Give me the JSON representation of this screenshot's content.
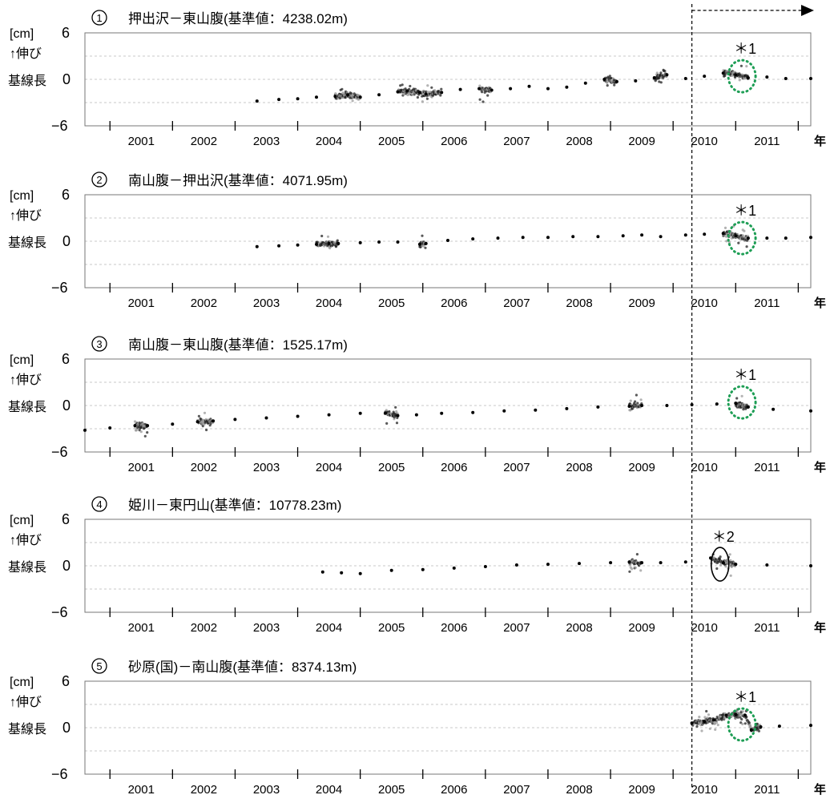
{
  "common": {
    "unit_label": "[cm]",
    "ylabel_line1": "↑伸び",
    "ylabel_line2": "基線長",
    "x_unit": "年",
    "y_ticks": [
      "6",
      "0",
      "−6"
    ],
    "x_tick_labels": [
      "2001",
      "2002",
      "2003",
      "2004",
      "2005",
      "2006",
      "2007",
      "2008",
      "2009",
      "2010",
      "2011"
    ],
    "marker_2010_year": 2010.3,
    "arrow": "dashed-right"
  },
  "chart_data": [
    {
      "type": "scatter",
      "index_label": "①",
      "title": "押出沢－東山腹(基準値：4238.02m)",
      "xlim": [
        2000.6,
        2012.2
      ],
      "ylim": [
        -6,
        6
      ],
      "grid": "dashed-horizontal",
      "series": [
        {
          "values": [
            [
              2003.35,
              -2.8
            ],
            [
              2003.7,
              -2.6
            ],
            [
              2004.0,
              -2.5
            ],
            [
              2004.3,
              -2.3
            ],
            [
              2004.6,
              -2.2
            ],
            [
              2004.8,
              -2.0
            ],
            [
              2005.0,
              -2.3
            ],
            [
              2005.3,
              -2.0
            ],
            [
              2005.6,
              -1.6
            ],
            [
              2005.75,
              -1.5
            ],
            [
              2005.95,
              -1.7
            ],
            [
              2006.05,
              -1.9
            ],
            [
              2006.3,
              -1.7
            ],
            [
              2006.6,
              -1.3
            ],
            [
              2006.9,
              -1.2
            ],
            [
              2007.1,
              -1.4
            ],
            [
              2007.4,
              -1.2
            ],
            [
              2007.7,
              -0.9
            ],
            [
              2008.0,
              -1.2
            ],
            [
              2008.3,
              -1.0
            ],
            [
              2008.6,
              -0.5
            ],
            [
              2008.9,
              0.0
            ],
            [
              2009.1,
              -0.3
            ],
            [
              2009.4,
              -0.2
            ],
            [
              2009.7,
              0.2
            ],
            [
              2009.9,
              0.6
            ],
            [
              2010.2,
              0.1
            ],
            [
              2010.5,
              0.4
            ],
            [
              2010.8,
              0.8
            ],
            [
              2011.0,
              0.6
            ],
            [
              2011.2,
              0.2
            ],
            [
              2011.5,
              0.3
            ],
            [
              2011.8,
              0.1
            ],
            [
              2012.2,
              0.1
            ]
          ]
        }
      ],
      "annotations": [
        {
          "text": "＊1",
          "x": 2011.1,
          "y": 0.4,
          "style": "green-dotted-ellipse"
        }
      ]
    },
    {
      "type": "scatter",
      "index_label": "②",
      "title": "南山腹－押出沢(基準値：4071.95m)",
      "xlim": [
        2000.6,
        2012.2
      ],
      "ylim": [
        -6,
        6
      ],
      "grid": "dashed-horizontal",
      "series": [
        {
          "values": [
            [
              2003.35,
              -0.7
            ],
            [
              2003.7,
              -0.6
            ],
            [
              2004.0,
              -0.5
            ],
            [
              2004.3,
              -0.4
            ],
            [
              2004.5,
              -0.3
            ],
            [
              2004.65,
              -0.3
            ],
            [
              2005.0,
              -0.2
            ],
            [
              2005.3,
              -0.1
            ],
            [
              2005.6,
              -0.1
            ],
            [
              2005.95,
              -0.4
            ],
            [
              2006.05,
              -0.3
            ],
            [
              2006.4,
              0.1
            ],
            [
              2006.8,
              0.3
            ],
            [
              2007.2,
              0.4
            ],
            [
              2007.6,
              0.5
            ],
            [
              2008.0,
              0.5
            ],
            [
              2008.4,
              0.6
            ],
            [
              2008.8,
              0.6
            ],
            [
              2009.2,
              0.7
            ],
            [
              2009.5,
              0.8
            ],
            [
              2009.8,
              0.6
            ],
            [
              2010.2,
              0.8
            ],
            [
              2010.5,
              0.9
            ],
            [
              2010.8,
              1.0
            ],
            [
              2011.0,
              0.7
            ],
            [
              2011.2,
              0.4
            ],
            [
              2011.5,
              0.4
            ],
            [
              2011.8,
              0.4
            ],
            [
              2012.2,
              0.5
            ]
          ]
        }
      ],
      "annotations": [
        {
          "text": "＊1",
          "x": 2011.1,
          "y": 0.4,
          "style": "green-dotted-ellipse"
        }
      ]
    },
    {
      "type": "scatter",
      "index_label": "③",
      "title": "南山腹－東山腹(基準値：1525.17m)",
      "xlim": [
        2000.6,
        2012.2
      ],
      "ylim": [
        -6,
        6
      ],
      "grid": "dashed-horizontal",
      "series": [
        {
          "values": [
            [
              2000.6,
              -3.2
            ],
            [
              2001.0,
              -2.9
            ],
            [
              2001.4,
              -2.6
            ],
            [
              2001.6,
              -2.6
            ],
            [
              2002.0,
              -2.4
            ],
            [
              2002.4,
              -2.1
            ],
            [
              2002.65,
              -2.0
            ],
            [
              2003.0,
              -1.8
            ],
            [
              2003.5,
              -1.6
            ],
            [
              2004.0,
              -1.4
            ],
            [
              2004.5,
              -1.2
            ],
            [
              2005.0,
              -1.0
            ],
            [
              2005.4,
              -1.0
            ],
            [
              2005.6,
              -1.3
            ],
            [
              2005.9,
              -1.2
            ],
            [
              2006.3,
              -1.0
            ],
            [
              2006.8,
              -0.9
            ],
            [
              2007.3,
              -0.7
            ],
            [
              2007.8,
              -0.6
            ],
            [
              2008.3,
              -0.4
            ],
            [
              2008.8,
              -0.2
            ],
            [
              2009.3,
              -0.1
            ],
            [
              2009.5,
              0.0
            ],
            [
              2009.9,
              0.0
            ],
            [
              2010.3,
              0.1
            ],
            [
              2010.7,
              0.2
            ],
            [
              2011.0,
              0.3
            ],
            [
              2011.2,
              -0.2
            ],
            [
              2011.6,
              -0.5
            ],
            [
              2012.2,
              -0.7
            ]
          ]
        }
      ],
      "annotations": [
        {
          "text": "＊1",
          "x": 2011.1,
          "y": 0.4,
          "style": "green-dotted-ellipse"
        }
      ]
    },
    {
      "type": "scatter",
      "index_label": "④",
      "title": "姫川－東円山(基準値：10778.23m)",
      "xlim": [
        2000.6,
        2012.2
      ],
      "ylim": [
        -6,
        6
      ],
      "grid": "dashed-horizontal",
      "series": [
        {
          "values": [
            [
              2004.4,
              -0.8
            ],
            [
              2004.7,
              -0.9
            ],
            [
              2005.0,
              -1.0
            ],
            [
              2005.5,
              -0.6
            ],
            [
              2006.0,
              -0.5
            ],
            [
              2006.5,
              -0.3
            ],
            [
              2007.0,
              -0.1
            ],
            [
              2007.5,
              0.1
            ],
            [
              2008.0,
              0.2
            ],
            [
              2008.5,
              0.3
            ],
            [
              2009.0,
              0.4
            ],
            [
              2009.3,
              0.5
            ],
            [
              2009.5,
              0.4
            ],
            [
              2009.8,
              0.4
            ],
            [
              2010.2,
              0.5
            ],
            [
              2010.6,
              1.0
            ],
            [
              2010.8,
              0.4
            ],
            [
              2011.0,
              0.2
            ],
            [
              2011.5,
              0.1
            ],
            [
              2012.2,
              0.0
            ]
          ]
        }
      ],
      "annotations": [
        {
          "text": "＊2",
          "x": 2010.75,
          "y": 0.2,
          "style": "black-ellipse"
        }
      ]
    },
    {
      "type": "scatter",
      "index_label": "⑤",
      "title": "砂原(国)－南山腹(基準値：8374.13m)",
      "xlim": [
        2000.6,
        2012.2
      ],
      "ylim": [
        -6,
        6
      ],
      "grid": "dashed-horizontal",
      "series": [
        {
          "values": [
            [
              2010.3,
              0.6
            ],
            [
              2010.5,
              0.8
            ],
            [
              2010.65,
              1.0
            ],
            [
              2010.85,
              1.6
            ],
            [
              2011.0,
              1.7
            ],
            [
              2011.15,
              1.6
            ],
            [
              2011.25,
              -0.3
            ],
            [
              2011.4,
              0.1
            ],
            [
              2011.7,
              0.2
            ],
            [
              2012.2,
              0.3
            ]
          ]
        }
      ],
      "annotations": [
        {
          "text": "＊1",
          "x": 2011.1,
          "y": 0.4,
          "style": "green-dotted-ellipse"
        }
      ]
    }
  ]
}
